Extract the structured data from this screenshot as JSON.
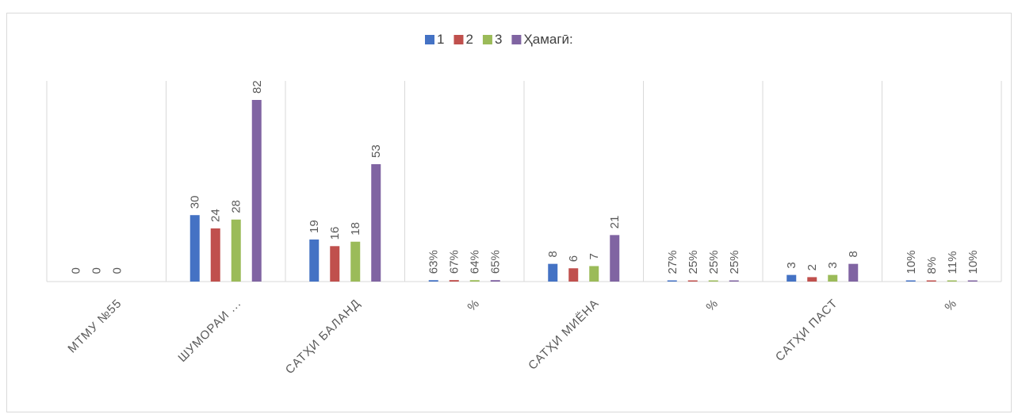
{
  "chart_data": {
    "type": "bar",
    "categories": [
      "МТМУ   №55",
      "ШУМОРАИ ...",
      "САТҲИ БАЛАНД",
      "%",
      "САТҲИ МИЁНА",
      "%",
      "САТҲИ ПАСТ",
      "%"
    ],
    "series": [
      {
        "name": "1",
        "color": "#4472c4",
        "values": [
          0,
          30,
          19,
          0.63,
          8,
          0.27,
          3,
          0.1
        ],
        "labels": [
          "0",
          "30",
          "19",
          "63%",
          "8",
          "27%",
          "3",
          "10%"
        ]
      },
      {
        "name": "2",
        "color": "#c0504d",
        "values": [
          0,
          24,
          16,
          0.67,
          6,
          0.25,
          2,
          0.08
        ],
        "labels": [
          "0",
          "24",
          "16",
          "67%",
          "6",
          "25%",
          "2",
          "8%"
        ]
      },
      {
        "name": "3",
        "color": "#9bbb59",
        "values": [
          0,
          28,
          18,
          0.64,
          7,
          0.25,
          3,
          0.11
        ],
        "labels": [
          "0",
          "28",
          "18",
          "64%",
          "7",
          "25%",
          "3",
          "11%"
        ]
      },
      {
        "name": "Ҳамагӣ:",
        "color": "#8064a2",
        "values": [
          null,
          82,
          53,
          0.65,
          21,
          0.25,
          8,
          0.1
        ],
        "labels": [
          "",
          "82",
          "53",
          "65%",
          "21",
          "25%",
          "8",
          "10%"
        ]
      }
    ],
    "ylim": [
      0,
      90
    ],
    "grid": "vertical category separators",
    "legend": "top-center"
  }
}
